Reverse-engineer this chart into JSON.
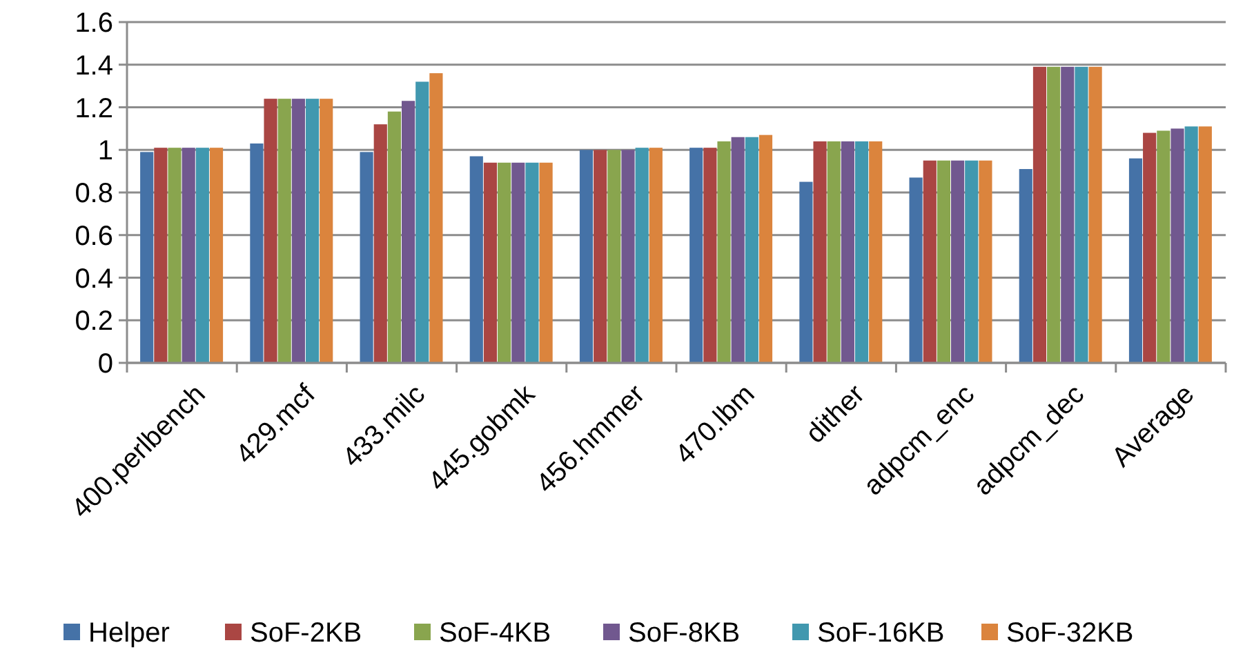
{
  "chart_data": {
    "type": "bar",
    "categories": [
      "400.perlbench",
      "429.mcf",
      "433.milc",
      "445.gobmk",
      "456.hmmer",
      "470.lbm",
      "dither",
      "adpcm_enc",
      "adpcm_dec",
      "Average"
    ],
    "series": [
      {
        "name": "Helper",
        "color": "#4572a7",
        "values": [
          0.99,
          1.03,
          0.99,
          0.97,
          1.0,
          1.01,
          0.85,
          0.87,
          0.91,
          0.96
        ]
      },
      {
        "name": "SoF-2KB",
        "color": "#aa4643",
        "values": [
          1.01,
          1.24,
          1.12,
          0.94,
          1.0,
          1.01,
          1.04,
          0.95,
          1.39,
          1.08
        ]
      },
      {
        "name": "SoF-4KB",
        "color": "#89a54e",
        "values": [
          1.01,
          1.24,
          1.18,
          0.94,
          1.0,
          1.04,
          1.04,
          0.95,
          1.39,
          1.09
        ]
      },
      {
        "name": "SoF-8KB",
        "color": "#71588f",
        "values": [
          1.01,
          1.24,
          1.23,
          0.94,
          1.0,
          1.06,
          1.04,
          0.95,
          1.39,
          1.1
        ]
      },
      {
        "name": "SoF-16KB",
        "color": "#4198af",
        "values": [
          1.01,
          1.24,
          1.32,
          0.94,
          1.01,
          1.06,
          1.04,
          0.95,
          1.39,
          1.11
        ]
      },
      {
        "name": "SoF-32KB",
        "color": "#db843d",
        "values": [
          1.01,
          1.24,
          1.36,
          0.94,
          1.01,
          1.07,
          1.04,
          0.95,
          1.39,
          1.11
        ]
      }
    ],
    "ylim": [
      0,
      1.6
    ],
    "yticks": [
      0,
      {
        "value": 0.2,
        "label": "0.2"
      },
      {
        "value": 0.4,
        "label": "0.4"
      },
      {
        "value": 0.6,
        "label": "0.6"
      },
      {
        "value": 0.8,
        "label": "0.8"
      },
      1,
      {
        "value": 1.2,
        "label": "1.2"
      },
      {
        "value": 1.4,
        "label": "1.4"
      },
      {
        "value": 1.6,
        "label": "1.6"
      }
    ],
    "grid": "y",
    "legend": "bottom"
  }
}
